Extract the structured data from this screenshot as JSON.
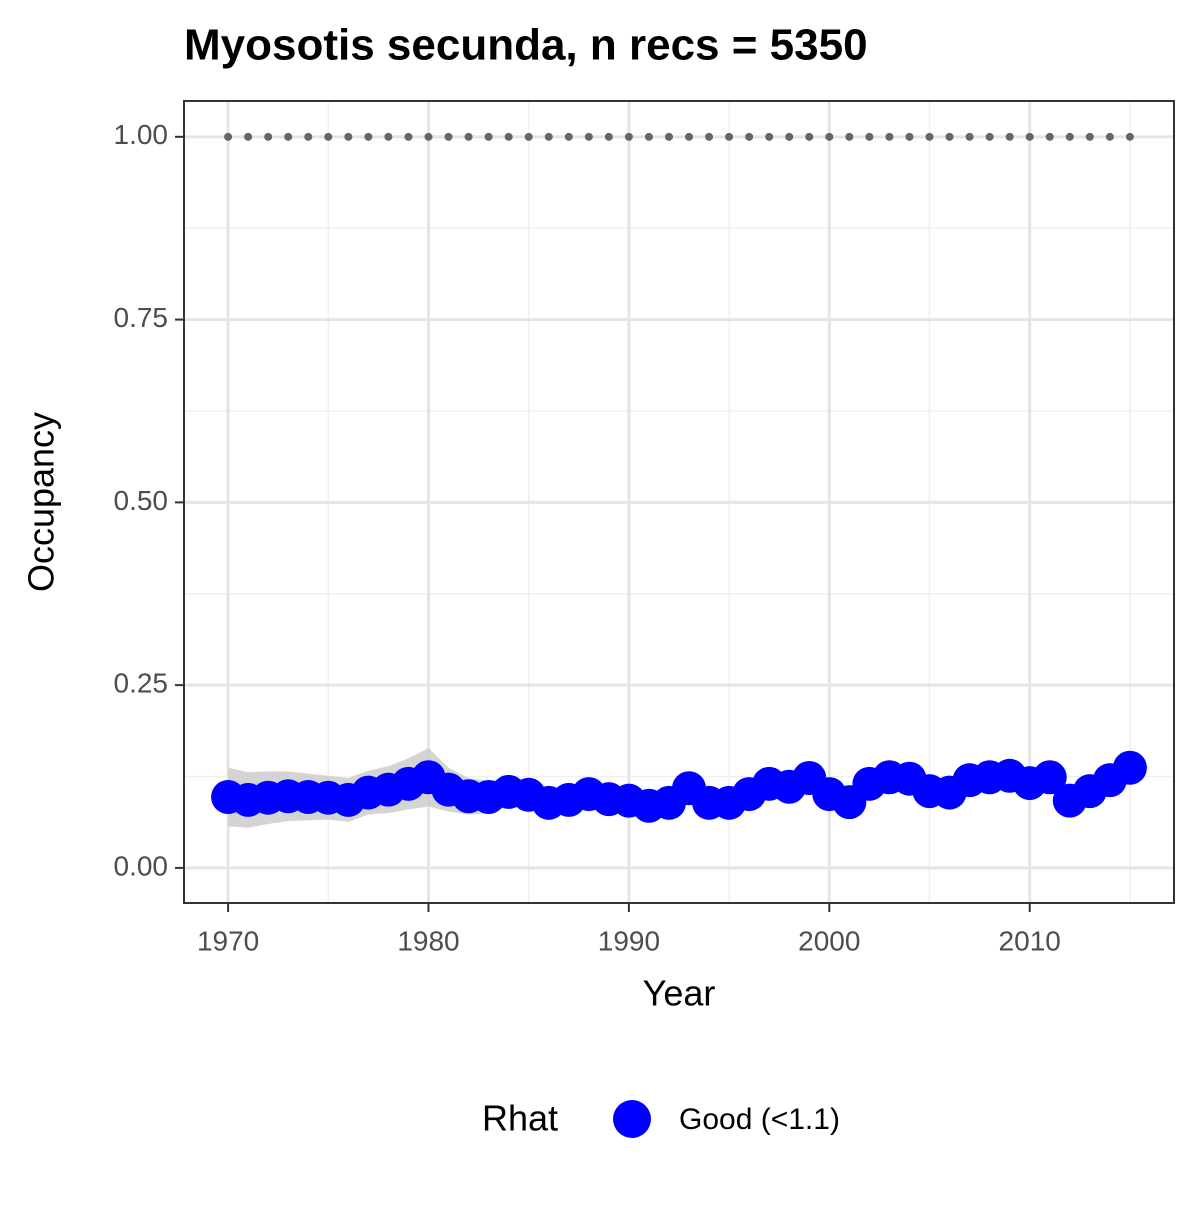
{
  "chart_data": {
    "type": "scatter",
    "title": "Myosotis secunda, n recs = 5350",
    "x_label": "Year",
    "y_label": "Occupancy",
    "legend_title": "Rhat",
    "legend_position": "bottom",
    "x": [
      1970,
      1971,
      1972,
      1973,
      1974,
      1975,
      1976,
      1977,
      1978,
      1979,
      1980,
      1981,
      1982,
      1983,
      1984,
      1985,
      1986,
      1987,
      1988,
      1989,
      1990,
      1991,
      1992,
      1993,
      1994,
      1995,
      1996,
      1997,
      1998,
      1999,
      2000,
      2001,
      2002,
      2003,
      2004,
      2005,
      2006,
      2007,
      2008,
      2009,
      2010,
      2011,
      2012,
      2013,
      2014,
      2015
    ],
    "series": [
      {
        "name": "Good (<1.1)",
        "color": "#0000ff",
        "values": [
          0.097,
          0.093,
          0.096,
          0.098,
          0.097,
          0.096,
          0.093,
          0.103,
          0.107,
          0.115,
          0.124,
          0.107,
          0.098,
          0.097,
          0.104,
          0.1,
          0.089,
          0.093,
          0.101,
          0.094,
          0.092,
          0.085,
          0.089,
          0.109,
          0.089,
          0.089,
          0.101,
          0.115,
          0.111,
          0.123,
          0.101,
          0.09,
          0.115,
          0.124,
          0.122,
          0.105,
          0.103,
          0.12,
          0.124,
          0.126,
          0.116,
          0.124,
          0.092,
          0.105,
          0.12,
          0.137
        ],
        "lower": [
          0.057,
          0.055,
          0.06,
          0.064,
          0.065,
          0.066,
          0.063,
          0.073,
          0.075,
          0.08,
          0.084,
          0.077,
          0.073,
          0.075,
          0.084,
          0.08,
          0.074,
          0.078,
          0.086,
          0.079,
          0.077,
          0.07,
          0.074,
          0.099,
          0.079,
          0.079,
          0.091,
          0.105,
          0.101,
          0.113,
          0.091,
          0.08,
          0.105,
          0.114,
          0.112,
          0.095,
          0.093,
          0.11,
          0.114,
          0.116,
          0.106,
          0.114,
          0.082,
          0.095,
          0.11,
          0.127
        ],
        "upper": [
          0.137,
          0.131,
          0.132,
          0.132,
          0.129,
          0.126,
          0.123,
          0.133,
          0.139,
          0.15,
          0.164,
          0.137,
          0.123,
          0.119,
          0.124,
          0.12,
          0.104,
          0.108,
          0.116,
          0.109,
          0.107,
          0.1,
          0.104,
          0.119,
          0.099,
          0.099,
          0.111,
          0.125,
          0.121,
          0.133,
          0.111,
          0.1,
          0.125,
          0.134,
          0.132,
          0.115,
          0.113,
          0.13,
          0.134,
          0.136,
          0.126,
          0.134,
          0.102,
          0.115,
          0.13,
          0.147
        ],
        "ribbon_color": "#cccccc"
      },
      {
        "color": "#666666",
        "values": [
          1,
          1,
          1,
          1,
          1,
          1,
          1,
          1,
          1,
          1,
          1,
          1,
          1,
          1,
          1,
          1,
          1,
          1,
          1,
          1,
          1,
          1,
          1,
          1,
          1,
          1,
          1,
          1,
          1,
          1,
          1,
          1,
          1,
          1,
          1,
          1,
          1,
          1,
          1,
          1,
          1,
          1,
          1,
          1,
          1,
          1
        ]
      }
    ],
    "xlim": [
      1967.8,
      2017.2
    ],
    "ylim": [
      -0.048,
      1.049
    ],
    "xticks": [
      1970,
      1980,
      1990,
      2000,
      2010
    ],
    "x_minor_ticks": [
      1975,
      1985,
      1995,
      2005,
      2015
    ],
    "yticks": [
      {
        "value": 0,
        "label": "0.00"
      },
      {
        "value": 0.25,
        "label": "0.25"
      },
      {
        "value": 0.5,
        "label": "0.50"
      },
      {
        "value": 0.75,
        "label": "0.75"
      },
      {
        "value": 1,
        "label": "1.00"
      }
    ],
    "y_minor_ticks": [
      0.125,
      0.375,
      0.625,
      0.875
    ],
    "grid": true
  }
}
